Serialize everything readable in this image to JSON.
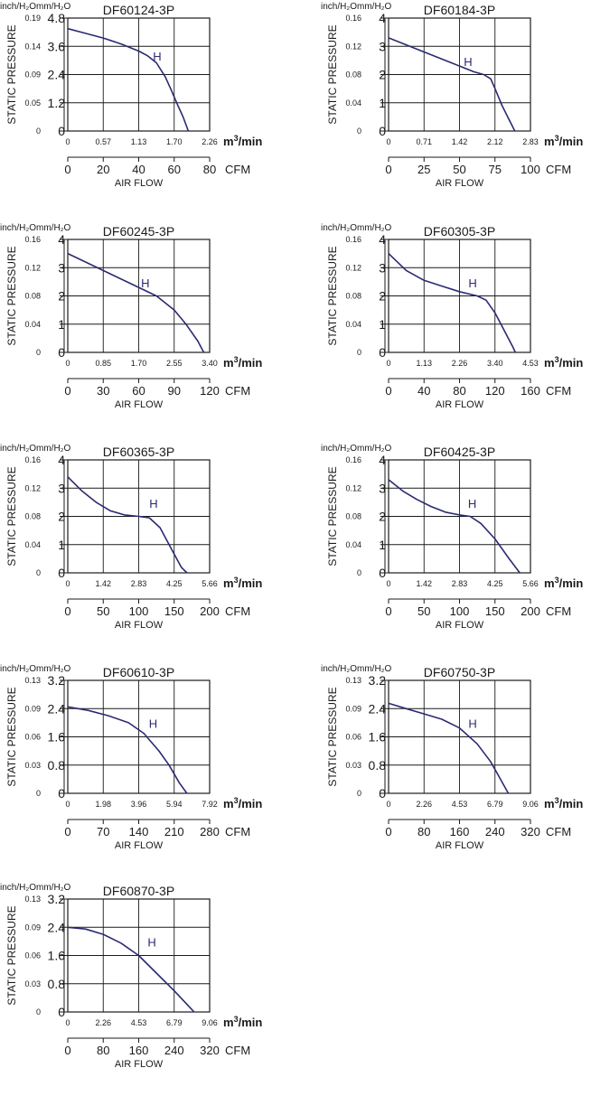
{
  "shared": {
    "label_inch": "inch/H₂O",
    "label_mm": "mm/H₂O",
    "ylabel": "STATIC PRESSURE",
    "xlabel": "AIR FLOW",
    "unit_m3_base": "m",
    "unit_m3_exp": "3",
    "unit_m3_rest": "/min",
    "unit_cfm": "CFM",
    "curve_label": "H",
    "colors": {
      "curve": "#2a2a72",
      "axis": "#1a1a1a",
      "grid": "#1a1a1a"
    }
  },
  "chart_data": [
    {
      "type": "line",
      "title": "DF60124-3P",
      "inch_ticks": [
        "0",
        "0.05",
        "0.09",
        "0.14",
        "0.19"
      ],
      "mm_ticks": [
        "0",
        "1.2",
        "2.4",
        "3.6",
        "4.8"
      ],
      "ylim": [
        0,
        4.8
      ],
      "m3_ticks": [
        "0",
        "0.57",
        "1.13",
        "1.70",
        "2.26"
      ],
      "cfm_ticks": [
        "0",
        "20",
        "40",
        "60",
        "80"
      ],
      "xlim": [
        0,
        80
      ],
      "series": [
        {
          "x": [
            0,
            10,
            20,
            30,
            40,
            45,
            50,
            55,
            58,
            62,
            65,
            68
          ],
          "y": [
            4.35,
            4.15,
            3.95,
            3.7,
            3.4,
            3.2,
            2.9,
            2.3,
            1.8,
            1.1,
            0.6,
            0
          ]
        }
      ],
      "label_at": [
        48,
        3.0
      ]
    },
    {
      "type": "line",
      "title": "DF60184-3P",
      "inch_ticks": [
        "0",
        "0.04",
        "0.08",
        "0.12",
        "0.16"
      ],
      "mm_ticks": [
        "0",
        "1",
        "2",
        "3",
        "4"
      ],
      "ylim": [
        0,
        4
      ],
      "m3_ticks": [
        "0",
        "0.71",
        "1.42",
        "2.12",
        "2.83"
      ],
      "cfm_ticks": [
        "0",
        "25",
        "50",
        "75",
        "100"
      ],
      "xlim": [
        0,
        100
      ],
      "series": [
        {
          "x": [
            0,
            15,
            30,
            45,
            60,
            67,
            72,
            75,
            80,
            85,
            89
          ],
          "y": [
            3.3,
            3.0,
            2.7,
            2.4,
            2.1,
            2.0,
            1.85,
            1.5,
            0.9,
            0.4,
            0
          ]
        }
      ],
      "label_at": [
        53,
        2.3
      ]
    },
    {
      "type": "line",
      "title": "DF60245-3P",
      "inch_ticks": [
        "0",
        "0.04",
        "0.08",
        "0.12",
        "0.16"
      ],
      "mm_ticks": [
        "0",
        "1",
        "2",
        "3",
        "4"
      ],
      "ylim": [
        0,
        4
      ],
      "m3_ticks": [
        "0",
        "0.85",
        "1.70",
        "2.55",
        "3.40"
      ],
      "cfm_ticks": [
        "0",
        "30",
        "60",
        "90",
        "120"
      ],
      "xlim": [
        0,
        120
      ],
      "series": [
        {
          "x": [
            0,
            20,
            40,
            60,
            75,
            90,
            100,
            110,
            115
          ],
          "y": [
            3.5,
            3.1,
            2.7,
            2.3,
            2.0,
            1.5,
            1.0,
            0.4,
            0
          ]
        }
      ],
      "label_at": [
        62,
        2.3
      ]
    },
    {
      "type": "line",
      "title": "DF60305-3P",
      "inch_ticks": [
        "0",
        "0.04",
        "0.08",
        "0.12",
        "0.16"
      ],
      "mm_ticks": [
        "0",
        "1",
        "2",
        "3",
        "4"
      ],
      "ylim": [
        0,
        4
      ],
      "m3_ticks": [
        "0",
        "1.13",
        "2.26",
        "3.40",
        "4.53"
      ],
      "cfm_ticks": [
        "0",
        "40",
        "80",
        "120",
        "160"
      ],
      "xlim": [
        0,
        160
      ],
      "series": [
        {
          "x": [
            0,
            20,
            40,
            60,
            80,
            100,
            110,
            120,
            130,
            140,
            143
          ],
          "y": [
            3.5,
            2.9,
            2.55,
            2.35,
            2.15,
            2.0,
            1.85,
            1.4,
            0.8,
            0.2,
            0
          ]
        }
      ],
      "label_at": [
        90,
        2.3
      ]
    },
    {
      "type": "line",
      "title": "DF60365-3P",
      "inch_ticks": [
        "0",
        "0.04",
        "0.08",
        "0.12",
        "0.16"
      ],
      "mm_ticks": [
        "0",
        "1",
        "2",
        "3",
        "4"
      ],
      "ylim": [
        0,
        4
      ],
      "m3_ticks": [
        "0",
        "1.42",
        "2.83",
        "4.25",
        "5.66"
      ],
      "cfm_ticks": [
        "0",
        "50",
        "100",
        "150",
        "200"
      ],
      "xlim": [
        0,
        200
      ],
      "series": [
        {
          "x": [
            0,
            20,
            40,
            60,
            80,
            100,
            115,
            130,
            145,
            160,
            168
          ],
          "y": [
            3.4,
            2.9,
            2.5,
            2.2,
            2.05,
            2.0,
            1.95,
            1.6,
            0.9,
            0.2,
            0
          ]
        }
      ],
      "label_at": [
        115,
        2.3
      ]
    },
    {
      "type": "line",
      "title": "DF60425-3P",
      "inch_ticks": [
        "0",
        "0.04",
        "0.08",
        "0.12",
        "0.16"
      ],
      "mm_ticks": [
        "0",
        "1",
        "2",
        "3",
        "4"
      ],
      "ylim": [
        0,
        4
      ],
      "m3_ticks": [
        "0",
        "1.42",
        "2.83",
        "4.25",
        "5.66"
      ],
      "cfm_ticks": [
        "0",
        "50",
        "100",
        "150",
        "200"
      ],
      "xlim": [
        0,
        200
      ],
      "series": [
        {
          "x": [
            0,
            20,
            40,
            60,
            80,
            100,
            115,
            130,
            150,
            170,
            185
          ],
          "y": [
            3.3,
            2.9,
            2.6,
            2.35,
            2.15,
            2.05,
            2.0,
            1.75,
            1.2,
            0.5,
            0
          ]
        }
      ],
      "label_at": [
        112,
        2.3
      ]
    },
    {
      "type": "line",
      "title": "DF60610-3P",
      "inch_ticks": [
        "0",
        "0.03",
        "0.06",
        "0.09",
        "0.13"
      ],
      "mm_ticks": [
        "0",
        "0.8",
        "1.6",
        "2.4",
        "3.2"
      ],
      "ylim": [
        0,
        3.2
      ],
      "m3_ticks": [
        "0",
        "1.98",
        "3.96",
        "5.94",
        "7.92"
      ],
      "cfm_ticks": [
        "0",
        "70",
        "140",
        "210",
        "280"
      ],
      "xlim": [
        0,
        280
      ],
      "series": [
        {
          "x": [
            0,
            40,
            80,
            120,
            150,
            180,
            200,
            220,
            235
          ],
          "y": [
            2.45,
            2.35,
            2.2,
            2.0,
            1.7,
            1.2,
            0.8,
            0.3,
            0
          ]
        }
      ],
      "label_at": [
        160,
        1.85
      ]
    },
    {
      "type": "line",
      "title": "DF60750-3P",
      "inch_ticks": [
        "0",
        "0.03",
        "0.06",
        "0.09",
        "0.13"
      ],
      "mm_ticks": [
        "0",
        "0.8",
        "1.6",
        "2.4",
        "3.2"
      ],
      "ylim": [
        0,
        3.2
      ],
      "m3_ticks": [
        "0",
        "2.26",
        "4.53",
        "6.79",
        "9.06"
      ],
      "cfm_ticks": [
        "0",
        "80",
        "160",
        "240",
        "320"
      ],
      "xlim": [
        0,
        320
      ],
      "series": [
        {
          "x": [
            0,
            40,
            80,
            120,
            160,
            200,
            230,
            250,
            270
          ],
          "y": [
            2.55,
            2.4,
            2.25,
            2.1,
            1.85,
            1.4,
            0.9,
            0.45,
            0
          ]
        }
      ],
      "label_at": [
        180,
        1.85
      ]
    },
    {
      "type": "line",
      "title": "DF60870-3P",
      "inch_ticks": [
        "0",
        "0.03",
        "0.06",
        "0.09",
        "0.13"
      ],
      "mm_ticks": [
        "0",
        "0.8",
        "1.6",
        "2.4",
        "3.2"
      ],
      "ylim": [
        0,
        3.2
      ],
      "m3_ticks": [
        "0",
        "2.26",
        "4.53",
        "6.79",
        "9.06"
      ],
      "cfm_ticks": [
        "0",
        "80",
        "160",
        "240",
        "320"
      ],
      "xlim": [
        0,
        320
      ],
      "series": [
        {
          "x": [
            0,
            40,
            80,
            120,
            160,
            200,
            240,
            270,
            285
          ],
          "y": [
            2.4,
            2.35,
            2.2,
            1.95,
            1.6,
            1.1,
            0.6,
            0.2,
            0
          ]
        }
      ],
      "label_at": [
        180,
        1.85
      ]
    }
  ]
}
